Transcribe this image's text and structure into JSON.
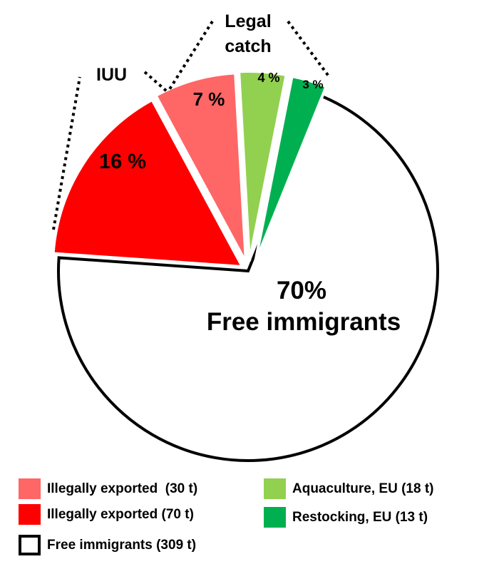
{
  "chart_data": {
    "type": "pie",
    "slices": [
      {
        "label": "Free immigrants",
        "value": 70,
        "color": "#ffffff",
        "percent_text": "70%",
        "name_text": "Free immigrants"
      },
      {
        "label": "Illegally exported (70 t)",
        "value": 16,
        "color": "#ff0000",
        "percent_text": "16 %"
      },
      {
        "label": "Illegally exported (30 t)",
        "value": 7,
        "color": "#ff6666",
        "percent_text": "7 %"
      },
      {
        "label": "Aquaculture, EU (18 t)",
        "value": 4,
        "color": "#92d050",
        "percent_text": "4 %"
      },
      {
        "label": "Restocking, EU (13 t)",
        "value": 3,
        "color": "#00b050",
        "percent_text": "3 %"
      }
    ],
    "group_labels": {
      "iuu": "IUU",
      "legal_line1": "Legal",
      "legal_line2": "catch"
    }
  },
  "legend": [
    {
      "text": "Illegally exported  (30 t)",
      "color": "#ff6666"
    },
    {
      "text": "Aquaculture, EU (18 t)",
      "color": "#92d050"
    },
    {
      "text": "Illegally exported (70 t)",
      "color": "#ff0000"
    },
    {
      "text": "Restocking, EU (13 t)",
      "color": "#00b050"
    },
    {
      "text": "Free immigrants (309 t)",
      "color": "#ffffff"
    }
  ]
}
